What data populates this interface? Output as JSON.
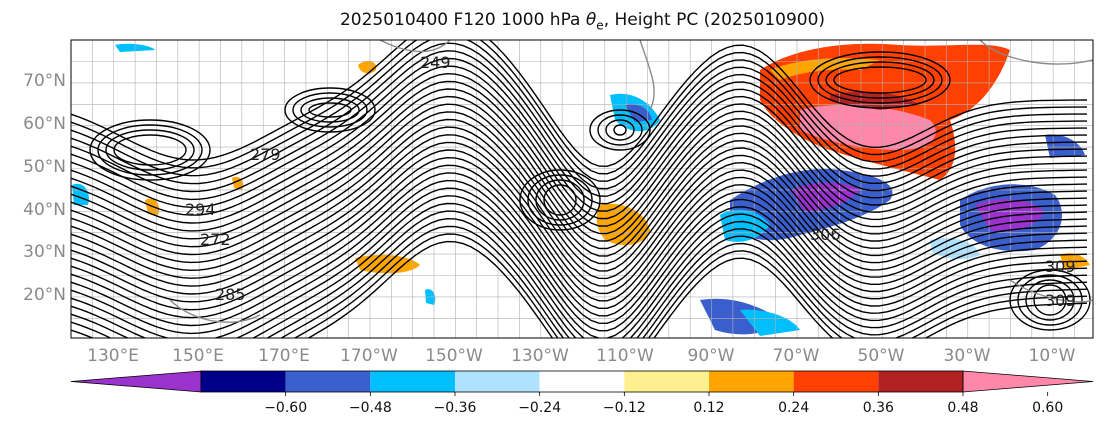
{
  "title_prefix": "2025010400 F120 1000 hPa ",
  "title_symbol": "θ",
  "title_subscript": "e",
  "title_suffix": ", Height PC (2025010900)",
  "map": {
    "lat_labels": [
      "70°N",
      "60°N",
      "50°N",
      "40°N",
      "30°N",
      "20°N"
    ],
    "lon_labels": [
      "130°E",
      "150°E",
      "170°E",
      "170°W",
      "150°W",
      "130°W",
      "110°W",
      "90°W",
      "70°W",
      "50°W",
      "30°W",
      "10°W"
    ],
    "contour_labels": [
      "249",
      "279",
      "294",
      "272",
      "306",
      "309",
      "309",
      "285"
    ]
  },
  "colorbar": {
    "colors": [
      "#9a32cd",
      "#00008b",
      "#3a5fcd",
      "#00bfff",
      "#b0e2ff",
      "#ffffff",
      "#fff08f",
      "#ffa500",
      "#ff4000",
      "#b22222",
      "#ff88aa"
    ],
    "tick_labels": [
      "−0.60",
      "−0.48",
      "−0.36",
      "−0.24",
      "−0.12",
      "0.12",
      "0.24",
      "0.36",
      "0.48",
      "0.60"
    ]
  },
  "colors": {
    "contour": "#000000",
    "grid": "#b0b0b0",
    "label_gray": "#8a8a8a"
  }
}
